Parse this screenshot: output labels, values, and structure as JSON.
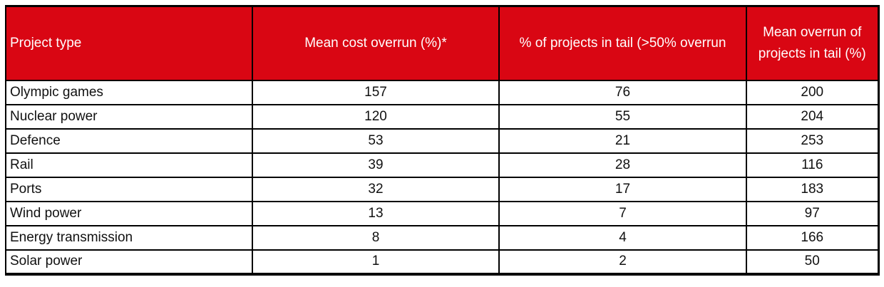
{
  "colors": {
    "header_bg": "#d90613",
    "header_text": "#ffffff",
    "grid_border": "#000000",
    "body_text": "#111111",
    "page_bg": "#ffffff"
  },
  "table": {
    "columns": [
      {
        "key": "project",
        "label": "Project type",
        "align": "left"
      },
      {
        "key": "mean_cost_overrun_pct",
        "label": "Mean cost overrun (%)*",
        "align": "center"
      },
      {
        "key": "pct_projects_in_tail",
        "label": "% of projects in tail (>50% overrun",
        "align": "center"
      },
      {
        "key": "mean_overrun_in_tail_pct",
        "label": "Mean overrun of projects in tail (%)",
        "align": "center"
      }
    ],
    "rows": [
      {
        "project": "Olympic games",
        "mean_cost_overrun_pct": "157",
        "pct_projects_in_tail": "76",
        "mean_overrun_in_tail_pct": "200"
      },
      {
        "project": "Nuclear power",
        "mean_cost_overrun_pct": "120",
        "pct_projects_in_tail": "55",
        "mean_overrun_in_tail_pct": "204"
      },
      {
        "project": "Defence",
        "mean_cost_overrun_pct": "53",
        "pct_projects_in_tail": "21",
        "mean_overrun_in_tail_pct": "253"
      },
      {
        "project": "Rail",
        "mean_cost_overrun_pct": "39",
        "pct_projects_in_tail": "28",
        "mean_overrun_in_tail_pct": "116"
      },
      {
        "project": "Ports",
        "mean_cost_overrun_pct": "32",
        "pct_projects_in_tail": "17",
        "mean_overrun_in_tail_pct": "183"
      },
      {
        "project": "Wind power",
        "mean_cost_overrun_pct": "13",
        "pct_projects_in_tail": "7",
        "mean_overrun_in_tail_pct": "97"
      },
      {
        "project": "Energy transmission",
        "mean_cost_overrun_pct": "8",
        "pct_projects_in_tail": "4",
        "mean_overrun_in_tail_pct": "166"
      },
      {
        "project": "Solar power",
        "mean_cost_overrun_pct": "1",
        "pct_projects_in_tail": "2",
        "mean_overrun_in_tail_pct": "50"
      }
    ]
  }
}
